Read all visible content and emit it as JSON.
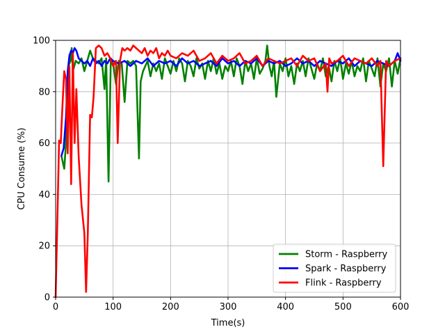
{
  "chart_data": {
    "type": "line",
    "title": "",
    "xlabel": "Time(s)",
    "ylabel": "CPU Consume (%)",
    "xlim": [
      0,
      600
    ],
    "ylim": [
      0,
      100
    ],
    "xticks": [
      0,
      100,
      200,
      300,
      400,
      500,
      600
    ],
    "yticks": [
      0,
      20,
      40,
      60,
      80,
      100
    ],
    "grid": true,
    "legend_position": "lower-right",
    "series": [
      {
        "name": "Storm - Raspberry",
        "color": "#008000",
        "x": [
          10,
          15,
          18,
          22,
          26,
          28,
          30,
          35,
          40,
          45,
          50,
          55,
          60,
          65,
          70,
          75,
          80,
          85,
          88,
          92,
          96,
          100,
          105,
          110,
          115,
          120,
          125,
          130,
          135,
          140,
          145,
          148,
          152,
          160,
          165,
          170,
          175,
          180,
          185,
          190,
          195,
          200,
          205,
          210,
          215,
          220,
          225,
          230,
          235,
          240,
          245,
          250,
          255,
          260,
          265,
          270,
          275,
          280,
          285,
          290,
          295,
          300,
          305,
          310,
          315,
          320,
          325,
          330,
          335,
          340,
          345,
          350,
          355,
          360,
          365,
          368,
          372,
          376,
          380,
          384,
          390,
          395,
          400,
          405,
          410,
          415,
          420,
          425,
          430,
          435,
          440,
          445,
          450,
          455,
          460,
          465,
          470,
          475,
          480,
          485,
          490,
          495,
          500,
          505,
          510,
          515,
          520,
          525,
          530,
          535,
          540,
          545,
          550,
          555,
          560,
          565,
          570,
          575,
          580,
          585,
          590,
          595,
          600
        ],
        "values": [
          55,
          50,
          60,
          90,
          92,
          97,
          88,
          92,
          91,
          93,
          88,
          92,
          96,
          93,
          92,
          91,
          93,
          81,
          93,
          45,
          93,
          91,
          83,
          92,
          91,
          76,
          92,
          91,
          92,
          90,
          54,
          84,
          88,
          92,
          86,
          91,
          88,
          91,
          85,
          93,
          90,
          87,
          92,
          88,
          93,
          91,
          84,
          92,
          90,
          86,
          93,
          89,
          91,
          85,
          92,
          88,
          93,
          87,
          91,
          85,
          90,
          88,
          92,
          86,
          93,
          90,
          83,
          92,
          88,
          91,
          85,
          93,
          87,
          89,
          92,
          98,
          90,
          86,
          92,
          78,
          91,
          88,
          93,
          86,
          90,
          83,
          91,
          88,
          92,
          86,
          93,
          89,
          85,
          91,
          88,
          93,
          86,
          90,
          84,
          92,
          88,
          93,
          85,
          91,
          87,
          92,
          86,
          90,
          88,
          93,
          84,
          92,
          89,
          86,
          93,
          82,
          91,
          88,
          93,
          82,
          92,
          87,
          93
        ]
      },
      {
        "name": "Spark - Raspberry",
        "color": "#0000ff",
        "x": [
          10,
          14,
          18,
          21,
          24,
          27,
          30,
          33,
          36,
          40,
          45,
          50,
          55,
          60,
          65,
          70,
          75,
          80,
          85,
          90,
          95,
          100,
          110,
          120,
          130,
          140,
          150,
          160,
          170,
          180,
          190,
          200,
          210,
          220,
          230,
          240,
          250,
          260,
          270,
          280,
          290,
          300,
          310,
          320,
          330,
          340,
          350,
          360,
          370,
          380,
          390,
          400,
          410,
          420,
          430,
          440,
          450,
          460,
          470,
          480,
          490,
          500,
          510,
          520,
          530,
          540,
          550,
          560,
          570,
          580,
          590,
          595,
          600
        ],
        "values": [
          55,
          58,
          70,
          88,
          94,
          96,
          95,
          97,
          96,
          93,
          92,
          91,
          92,
          90,
          93,
          91,
          92,
          90,
          92,
          91,
          93,
          92,
          91,
          92,
          90,
          92,
          91,
          93,
          90,
          92,
          91,
          92,
          90,
          93,
          91,
          92,
          90,
          91,
          92,
          90,
          93,
          91,
          92,
          90,
          92,
          91,
          93,
          90,
          92,
          91,
          92,
          90,
          91,
          93,
          91,
          92,
          90,
          92,
          91,
          90,
          92,
          91,
          93,
          90,
          92,
          91,
          90,
          92,
          91,
          90,
          92,
          95,
          92
        ]
      },
      {
        "name": "Flink - Raspberry",
        "color": "#ff0000",
        "x": [
          0,
          3,
          6,
          9,
          12,
          15,
          18,
          21,
          24,
          27,
          30,
          33,
          36,
          40,
          45,
          50,
          53,
          56,
          60,
          63,
          66,
          70,
          75,
          80,
          85,
          90,
          95,
          100,
          105,
          108,
          112,
          116,
          120,
          125,
          130,
          135,
          140,
          145,
          150,
          155,
          160,
          165,
          170,
          175,
          180,
          185,
          190,
          195,
          200,
          210,
          220,
          230,
          240,
          250,
          260,
          270,
          280,
          290,
          300,
          310,
          320,
          330,
          340,
          350,
          360,
          370,
          380,
          390,
          400,
          410,
          420,
          430,
          440,
          450,
          460,
          470,
          473,
          476,
          480,
          490,
          500,
          510,
          520,
          530,
          540,
          550,
          560,
          565,
          570,
          575,
          580,
          590,
          600
        ],
        "values": [
          0,
          30,
          61,
          60,
          75,
          88,
          85,
          56,
          90,
          44,
          95,
          60,
          81,
          55,
          36,
          25,
          2,
          25,
          71,
          70,
          78,
          97,
          98,
          97,
          94,
          95,
          93,
          90,
          92,
          60,
          92,
          97,
          96,
          97,
          96,
          98,
          97,
          96,
          95,
          97,
          94,
          96,
          95,
          97,
          93,
          95,
          94,
          96,
          94,
          93,
          95,
          94,
          96,
          92,
          93,
          95,
          91,
          94,
          92,
          93,
          95,
          91,
          92,
          94,
          90,
          93,
          92,
          91,
          92,
          93,
          90,
          94,
          92,
          93,
          88,
          91,
          80,
          93,
          91,
          92,
          94,
          90,
          93,
          92,
          91,
          93,
          90,
          92,
          51,
          92,
          90,
          92,
          93
        ]
      }
    ]
  }
}
